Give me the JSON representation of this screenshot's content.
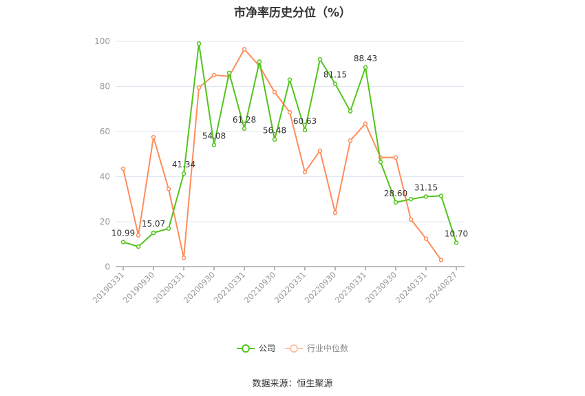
{
  "title": "市净率历史分位（%）",
  "legend": {
    "company": "公司",
    "industry": "行业中位数"
  },
  "source": "数据来源：恒生聚源",
  "colors": {
    "company": "#52c41a",
    "industry": "#ff8c5a",
    "grid": "#e0e6f1",
    "axis": "#6e7079",
    "tick_label": "#999999"
  },
  "chart_data": {
    "type": "line",
    "title": "市净率历史分位（%）",
    "xlabel": "",
    "ylabel": "",
    "ylim": [
      0,
      100
    ],
    "yticks": [
      0,
      20,
      40,
      60,
      80,
      100
    ],
    "grid": true,
    "legend_position": "bottom",
    "x_tick_labels": [
      "20190331",
      "20190930",
      "20200331",
      "20200930",
      "20210331",
      "20210930",
      "20220331",
      "20220930",
      "20230331",
      "20230930",
      "20240331",
      "20240827"
    ],
    "x": [
      "20190331",
      "20190630",
      "20190930",
      "20191231",
      "20200331",
      "20200630",
      "20200930",
      "20201231",
      "20210331",
      "20210630",
      "20210930",
      "20211231",
      "20220331",
      "20220630",
      "20220930",
      "20221231",
      "20230331",
      "20230630",
      "20230930",
      "20231231",
      "20240331",
      "20240630",
      "20240827"
    ],
    "series": [
      {
        "name": "公司",
        "values": [
          10.99,
          9.0,
          15.07,
          17.0,
          41.34,
          99.0,
          54.08,
          86.0,
          61.28,
          91.0,
          56.48,
          83.0,
          60.63,
          92.0,
          81.15,
          69.0,
          88.43,
          46.5,
          28.6,
          30.0,
          31.15,
          31.5,
          10.7
        ],
        "data_labels": {
          "0": "10.99",
          "2": "15.07",
          "4": "41.34",
          "6": "54.08",
          "8": "61.28",
          "10": "56.48",
          "12": "60.63",
          "14": "81.15",
          "16": "88.43",
          "18": "28.60",
          "20": "31.15",
          "22": "10.70"
        }
      },
      {
        "name": "行业中位数",
        "values": [
          43.5,
          14.0,
          57.5,
          34.5,
          4.0,
          79.5,
          85.0,
          84.5,
          96.5,
          89.0,
          77.5,
          68.5,
          42.0,
          51.5,
          24.0,
          56.0,
          63.5,
          48.5,
          48.5,
          21.0,
          12.5,
          3.0,
          null
        ]
      }
    ]
  }
}
